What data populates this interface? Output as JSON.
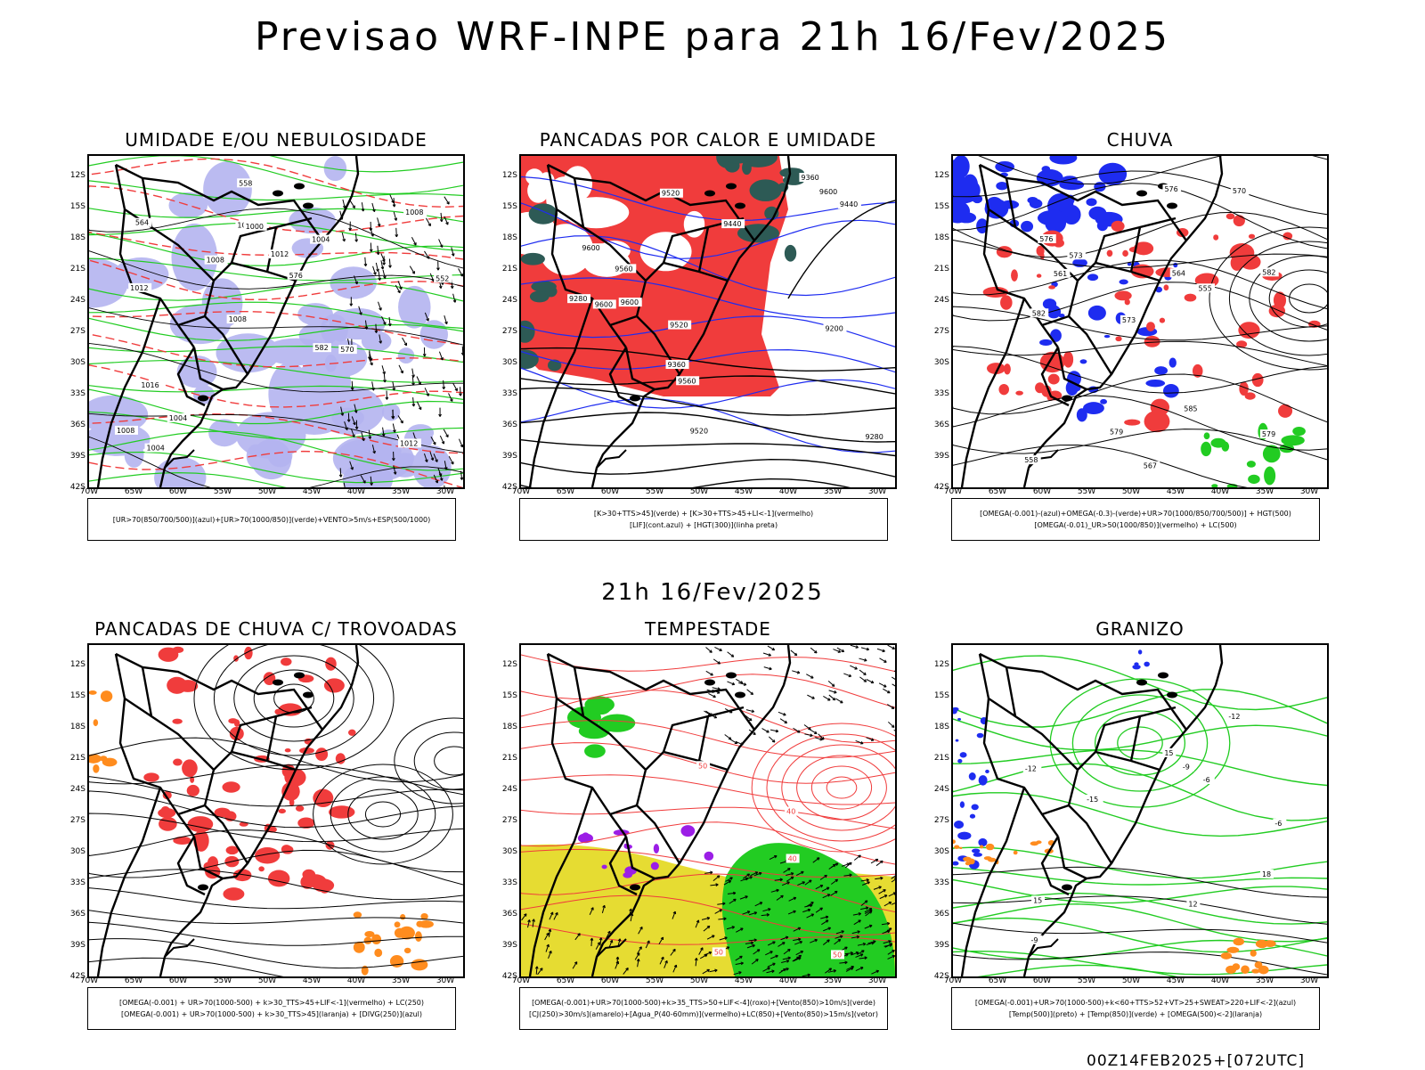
{
  "title": "Previsao WRF-INPE  para 21h 16/Fev/2025",
  "middle_time": "21h 16/Fev/2025",
  "footer": "00Z14FEB2025+[072UTC]",
  "axis": {
    "lat_ticks": [
      "12S",
      "15S",
      "18S",
      "21S",
      "24S",
      "27S",
      "30S",
      "33S",
      "36S",
      "39S",
      "42S"
    ],
    "lon_ticks": [
      "70W",
      "65W",
      "60W",
      "55W",
      "50W",
      "45W",
      "40W",
      "35W",
      "30W"
    ]
  },
  "colors": {
    "red": "#f03c3c",
    "blue": "#1e2cf0",
    "green": "#22cc22",
    "lavender": "#b4b4f0",
    "orange": "#ff8c1e",
    "yellow": "#e6dc32",
    "darkteal": "#2d5a55",
    "purple": "#9b1ee6"
  },
  "panels": [
    {
      "id": "umidade",
      "title": "UMIDADE E/OU NEBULOSIDADE",
      "legend": [
        "[UR>70(850/700/500)](azul)+[UR>70(1000/850)](verde)+VENTO>5m/s+ESP(500/1000)"
      ],
      "labels": [
        "1012",
        "1012",
        "1008",
        "1008",
        "1004",
        "1004",
        "1012",
        "1012",
        "1016",
        "1008",
        "1008",
        "1004",
        "1000",
        "576",
        "570",
        "564",
        "558",
        "552",
        "582"
      ]
    },
    {
      "id": "calor",
      "title": "PANCADAS POR CALOR E UMIDADE",
      "legend": [
        "[K>30+TTS>45](verde)  +  [K>30+TTS>45+LI<-1](vermelho)",
        "[LIF](cont.azul)  +  [HGT(300)](linha preta)"
      ],
      "labels": [
        "9600",
        "9560",
        "9560",
        "9600",
        "9600",
        "9520",
        "9440",
        "9360",
        "9280",
        "9200",
        "9520",
        "9440",
        "9360",
        "9280",
        "9600",
        "9520"
      ]
    },
    {
      "id": "chuva",
      "title": "CHUVA",
      "legend": [
        "[OMEGA(-0.001)-(azul)+OMEGA(-0.3)-(verde)+UR>70(1000/850/700/500)]  +  HGT(500)",
        "[OMEGA(-0.01)_UR>50(1000/850)](vermelho)  +  LC(500)"
      ],
      "labels": [
        "585",
        "582",
        "582",
        "579",
        "579",
        "576",
        "573",
        "570",
        "567",
        "564",
        "561",
        "558",
        "555",
        "576",
        "573"
      ]
    },
    {
      "id": "trovoadas",
      "title": "PANCADAS DE CHUVA C/ TROVOADAS",
      "legend": [
        "[OMEGA(-0.001)  +  UR>70(1000-500)  +  k>30_TTS>45+LIF<-1](vermelho)  +  LC(250)",
        "[OMEGA(-0.001)  +  UR>70(1000-500)  +  k>30_TTS>45](laranja)  +  [DIVG(250)](azul)"
      ],
      "labels": []
    },
    {
      "id": "tempestade",
      "title": "TEMPESTADE",
      "legend": [
        "[OMEGA(-0.001)+UR>70(1000-500)+k>35_TTS>50+LIF<-4](roxo)+[Vento(850)>10m/s](verde)",
        "[CJ(250)>30m/s](amarelo)+[Agua_P(40-60mm)](vermelho)+LC(850)+[Vento(850)>15m/s](vetor)"
      ],
      "labels": [
        "50",
        "50",
        "40",
        "50",
        "40"
      ]
    },
    {
      "id": "granizo",
      "title": "GRANIZO",
      "legend": [
        "[OMEGA(-0.001)+UR>70(1000-500)+k<60+TTS>52+VT>25+SWEAT>220+LIF<-2](azul)",
        "[Temp(500)](preto)  +  [Temp(850)](verde)  +  [OMEGA(500)<-2](laranja)"
      ],
      "labels": [
        "-6",
        "-9",
        "-12",
        "-15",
        "15",
        "18",
        "12",
        "15",
        "-6",
        "-9",
        "-12"
      ]
    }
  ]
}
